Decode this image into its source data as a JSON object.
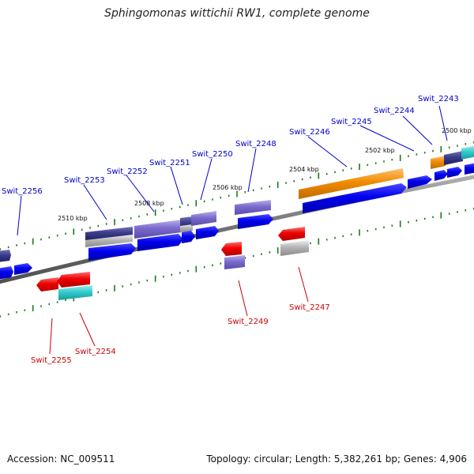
{
  "title": "Sphingomonas wittichii RW1, complete genome",
  "footer": {
    "accession": "Accession: NC_009511",
    "summary": "Topology: circular; Length: 5,382,261 bp; Genes: 4,906"
  },
  "colors": {
    "forward_label": "#0000cc",
    "reverse_label": "#cc0000",
    "backbone": "#808080",
    "tick": "#1a7a1a",
    "blue_gene": "#0000ee",
    "purple_gene": "#7a6acc",
    "dark_purple_gene": "#3a3a8a",
    "red_gene": "#ee0000",
    "cyan_gene": "#33cccc",
    "orange_gene": "#f08c00",
    "gray_gene": "#aaaaaa"
  },
  "kbp_labels": [
    "2500 kbp",
    "2502 kbp",
    "2504 kbp",
    "2506 kbp",
    "2508 kbp",
    "2510 kbp"
  ],
  "forward_genes": [
    "Swit_2243",
    "Swit_2244",
    "Swit_2245",
    "Swit_2246",
    "Swit_2248",
    "Swit_2250",
    "Swit_2251",
    "Swit_2252",
    "Swit_2253",
    "Swit_2256"
  ],
  "reverse_genes": [
    "Swit_2247",
    "Swit_2249",
    "Swit_2254",
    "Swit_2255"
  ]
}
